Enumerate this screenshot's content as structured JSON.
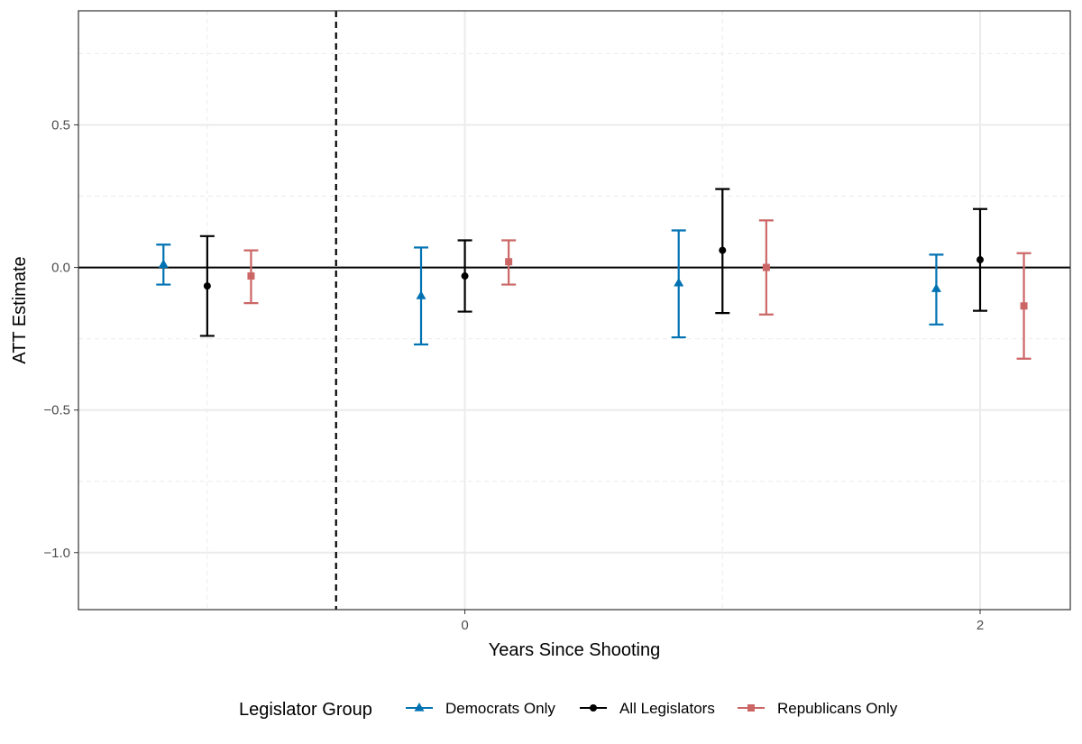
{
  "chart_data": {
    "type": "errorbar",
    "title": "",
    "xlabel": "Years Since Shooting",
    "ylabel": "ATT Estimate",
    "ylim": [
      -1.2,
      0.9
    ],
    "xlim": [
      -1.5,
      2.35
    ],
    "yticks": [
      -1.0,
      -0.5,
      0.0,
      0.5
    ],
    "ytick_labels": [
      "−1.0",
      "−0.5",
      "0.0",
      "0.5"
    ],
    "xticks": [
      0,
      2
    ],
    "xtick_labels": [
      "0",
      "2"
    ],
    "x_minor_gridlines": [
      -1,
      1
    ],
    "y_minor_gridlines": [
      -0.75,
      -0.25,
      0.25,
      0.75
    ],
    "reference_hline": 0,
    "reference_vline": -0.5,
    "legend": {
      "title": "Legislator Group",
      "position": "bottom"
    },
    "series": [
      {
        "name": "Democrats Only",
        "color": "#0072B2",
        "marker": "triangle",
        "points": [
          {
            "x": -1.17,
            "estimate": 0.01,
            "lower": -0.06,
            "upper": 0.08
          },
          {
            "x": -0.17,
            "estimate": -0.1,
            "lower": -0.27,
            "upper": 0.07
          },
          {
            "x": 0.83,
            "estimate": -0.055,
            "lower": -0.245,
            "upper": 0.13
          },
          {
            "x": 1.83,
            "estimate": -0.075,
            "lower": -0.2,
            "upper": 0.045
          }
        ]
      },
      {
        "name": "All Legislators",
        "color": "#000000",
        "marker": "circle",
        "points": [
          {
            "x": -1.0,
            "estimate": -0.065,
            "lower": -0.24,
            "upper": 0.11
          },
          {
            "x": 0.0,
            "estimate": -0.03,
            "lower": -0.155,
            "upper": 0.095
          },
          {
            "x": 1.0,
            "estimate": 0.06,
            "lower": -0.16,
            "upper": 0.275
          },
          {
            "x": 2.0,
            "estimate": 0.027,
            "lower": -0.152,
            "upper": 0.205
          }
        ]
      },
      {
        "name": "Republicans Only",
        "color": "#CC6666",
        "marker": "square",
        "points": [
          {
            "x": -0.83,
            "estimate": -0.03,
            "lower": -0.125,
            "upper": 0.06
          },
          {
            "x": 0.17,
            "estimate": 0.02,
            "lower": -0.06,
            "upper": 0.095
          },
          {
            "x": 1.17,
            "estimate": 0.0,
            "lower": -0.165,
            "upper": 0.165
          },
          {
            "x": 2.17,
            "estimate": -0.135,
            "lower": -0.32,
            "upper": 0.05
          }
        ]
      }
    ]
  }
}
